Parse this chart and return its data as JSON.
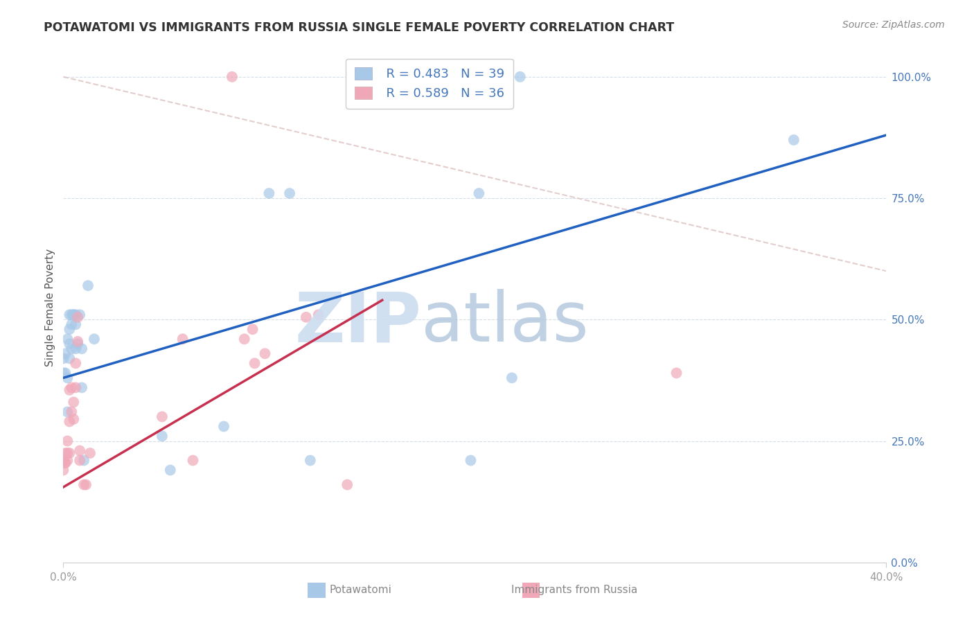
{
  "title": "POTAWATOMI VS IMMIGRANTS FROM RUSSIA SINGLE FEMALE POVERTY CORRELATION CHART",
  "source": "Source: ZipAtlas.com",
  "ylabel": "Single Female Poverty",
  "legend_blue_R": "R = 0.483",
  "legend_blue_N": "N = 39",
  "legend_pink_R": "R = 0.589",
  "legend_pink_N": "N = 36",
  "legend_label_blue": "Potawatomi",
  "legend_label_pink": "Immigrants from Russia",
  "color_blue": "#a8c8e8",
  "color_pink": "#f0a8b8",
  "color_blue_line": "#2060c0",
  "color_pink_line": "#c83050",
  "color_diag": "#e0c8c8",
  "xlim": [
    0.0,
    0.4
  ],
  "ylim": [
    0.0,
    1.05
  ],
  "blue_dots": [
    [
      0.0,
      0.42
    ],
    [
      0.0,
      0.39
    ],
    [
      0.001,
      0.43
    ],
    [
      0.001,
      0.39
    ],
    [
      0.002,
      0.46
    ],
    [
      0.002,
      0.38
    ],
    [
      0.002,
      0.31
    ],
    [
      0.003,
      0.45
    ],
    [
      0.003,
      0.42
    ],
    [
      0.003,
      0.48
    ],
    [
      0.003,
      0.51
    ],
    [
      0.004,
      0.49
    ],
    [
      0.004,
      0.44
    ],
    [
      0.004,
      0.51
    ],
    [
      0.005,
      0.51
    ],
    [
      0.005,
      0.51
    ],
    [
      0.006,
      0.49
    ],
    [
      0.006,
      0.44
    ],
    [
      0.006,
      0.51
    ],
    [
      0.007,
      0.45
    ],
    [
      0.008,
      0.51
    ],
    [
      0.009,
      0.44
    ],
    [
      0.009,
      0.36
    ],
    [
      0.01,
      0.21
    ],
    [
      0.012,
      0.57
    ],
    [
      0.015,
      0.46
    ],
    [
      0.048,
      0.26
    ],
    [
      0.052,
      0.19
    ],
    [
      0.078,
      0.28
    ],
    [
      0.1,
      0.76
    ],
    [
      0.11,
      0.76
    ],
    [
      0.12,
      0.21
    ],
    [
      0.152,
      1.0
    ],
    [
      0.198,
      0.21
    ],
    [
      0.202,
      0.76
    ],
    [
      0.218,
      0.38
    ],
    [
      0.222,
      1.0
    ],
    [
      0.355,
      0.87
    ],
    [
      0.145,
      1.0
    ]
  ],
  "pink_dots": [
    [
      0.0,
      0.19
    ],
    [
      0.0,
      0.21
    ],
    [
      0.001,
      0.205
    ],
    [
      0.001,
      0.225
    ],
    [
      0.001,
      0.205
    ],
    [
      0.002,
      0.225
    ],
    [
      0.002,
      0.25
    ],
    [
      0.002,
      0.21
    ],
    [
      0.003,
      0.225
    ],
    [
      0.003,
      0.355
    ],
    [
      0.003,
      0.29
    ],
    [
      0.004,
      0.36
    ],
    [
      0.004,
      0.31
    ],
    [
      0.005,
      0.295
    ],
    [
      0.005,
      0.33
    ],
    [
      0.006,
      0.36
    ],
    [
      0.006,
      0.41
    ],
    [
      0.007,
      0.455
    ],
    [
      0.007,
      0.505
    ],
    [
      0.008,
      0.23
    ],
    [
      0.008,
      0.21
    ],
    [
      0.01,
      0.16
    ],
    [
      0.011,
      0.16
    ],
    [
      0.013,
      0.225
    ],
    [
      0.048,
      0.3
    ],
    [
      0.063,
      0.21
    ],
    [
      0.088,
      0.46
    ],
    [
      0.092,
      0.48
    ],
    [
      0.098,
      0.43
    ],
    [
      0.118,
      0.505
    ],
    [
      0.124,
      0.51
    ],
    [
      0.058,
      0.46
    ],
    [
      0.093,
      0.41
    ],
    [
      0.138,
      0.16
    ],
    [
      0.082,
      1.0
    ],
    [
      0.298,
      0.39
    ]
  ],
  "blue_line_x": [
    0.0,
    0.4
  ],
  "blue_line_y": [
    0.38,
    0.88
  ],
  "pink_line_x": [
    0.0,
    0.155
  ],
  "pink_line_y": [
    0.155,
    0.54
  ],
  "diag_line_x": [
    0.0,
    0.4
  ],
  "diag_line_y": [
    1.0,
    0.6
  ],
  "xtick_positions": [
    0.0,
    0.4
  ],
  "xtick_labels": [
    "0.0%",
    "40.0%"
  ],
  "ytick_positions": [
    0.0,
    0.25,
    0.5,
    0.75,
    1.0
  ],
  "ytick_labels": [
    "0.0%",
    "25.0%",
    "50.0%",
    "75.0%",
    "100.0%"
  ]
}
